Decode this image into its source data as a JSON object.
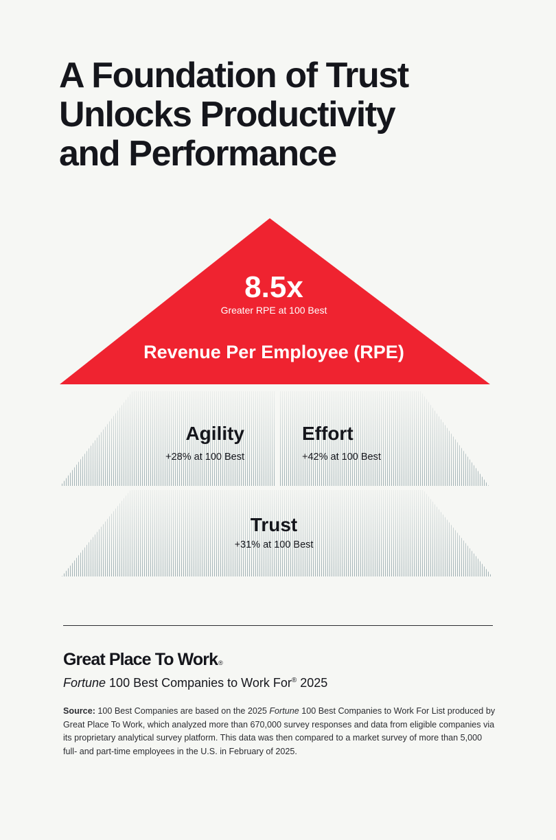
{
  "title": {
    "line1": "A Foundation of Trust",
    "line2": "Unlocks Productivity",
    "line3": "and Performance"
  },
  "pyramid": {
    "top": {
      "value": "8.5x",
      "caption": "Greater RPE at 100 Best",
      "label": "Revenue Per Employee (RPE)",
      "color": "#ef2330"
    },
    "middle_left": {
      "label": "Agility",
      "stat": "+28% at 100 Best"
    },
    "middle_right": {
      "label": "Effort",
      "stat": "+42% at 100 Best"
    },
    "bottom": {
      "label": "Trust",
      "stat": "+31% at 100 Best"
    },
    "hatch_color": "#8fa3a8"
  },
  "footer": {
    "brand": "Great Place To Work",
    "brand_mark": "®",
    "program_italic": "Fortune",
    "program_rest": " 100 Best Companies to Work For",
    "program_reg": "®",
    "program_year": " 2025",
    "source": {
      "label": "Source:",
      "text1": " 100 Best Companies are based on the 2025 ",
      "italic": "Fortune",
      "text2": " 100 Best Companies to Work For List produced by Great Place To Work, which analyzed more than 670,000 survey responses and data from eligible companies via its proprietary analytical survey platform. This data was then compared to a market survey of more than 5,000 full- and part-time employees in the U.S. in February of 2025."
    }
  }
}
